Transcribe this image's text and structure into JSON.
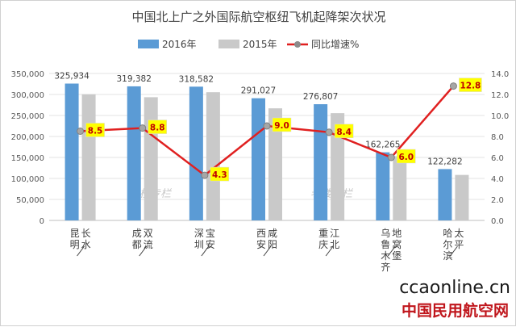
{
  "chart_data": {
    "type": "bar",
    "title": "中国北上广之外国际航空枢纽飞机起降架次状况",
    "categories": [
      "昆明/长水",
      "成都/双流",
      "深圳/宝安",
      "西安/咸阳",
      "重庆/江北",
      "乌鲁木齐/地窝堡",
      "哈尔滨/太平"
    ],
    "series": [
      {
        "name": "2016年",
        "kind": "bar",
        "axis": "left",
        "color": "#5b9bd5",
        "values": [
          325934,
          319382,
          318582,
          291027,
          276807,
          162265,
          122282
        ],
        "labels": [
          "325,934",
          "319,382",
          "318,582",
          "291,027",
          "276,807",
          "162,265",
          "122,282"
        ]
      },
      {
        "name": "2015年",
        "kind": "bar",
        "axis": "left",
        "color": "#c9c9c9",
        "values": [
          300400,
          293500,
          305400,
          267000,
          255500,
          153000,
          108400
        ]
      },
      {
        "name": "同比增速%",
        "kind": "line",
        "axis": "right",
        "color": "#e02020",
        "values": [
          8.5,
          8.8,
          4.3,
          9.0,
          8.4,
          6.0,
          12.8
        ],
        "labels": [
          "8.5",
          "8.8",
          "4.3",
          "9.0",
          "8.4",
          "6.0",
          "12.8"
        ]
      }
    ],
    "ylim_left": [
      0,
      350000
    ],
    "yticks_left": [
      "0",
      "50,000",
      "100,000",
      "150,000",
      "200,000",
      "250,000",
      "300,000",
      "350,000"
    ],
    "ylim_right": [
      0,
      14
    ],
    "yticks_right": [
      "0.0",
      "2.0",
      "4.0",
      "6.0",
      "8.0",
      "10.0",
      "12.0",
      "14.0"
    ],
    "grid": true,
    "legend_position": "top"
  },
  "watermark": "老楼专栏",
  "site": {
    "domain": "ccaonline.cn",
    "name": "中国民用航空网"
  }
}
